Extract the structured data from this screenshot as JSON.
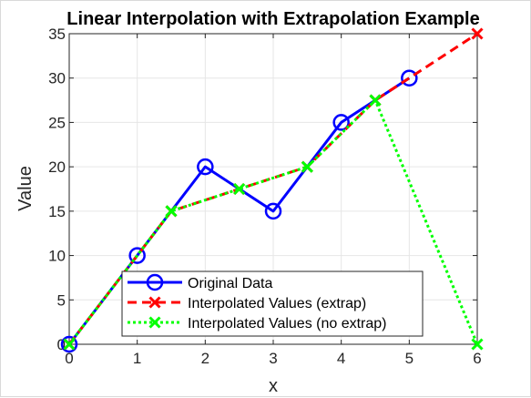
{
  "chart_data": {
    "type": "line",
    "title": "Linear Interpolation with Extrapolation Example",
    "xlabel": "x",
    "ylabel": "Value",
    "xlim": [
      0,
      6
    ],
    "ylim": [
      0,
      35
    ],
    "xticks": [
      0,
      1,
      2,
      3,
      4,
      5,
      6
    ],
    "yticks": [
      0,
      5,
      10,
      15,
      20,
      25,
      30,
      35
    ],
    "grid": true,
    "legend_position": "bottom-left",
    "series": [
      {
        "name": "Original Data",
        "color": "#0000ff",
        "line_style": "solid",
        "marker": "circle",
        "x": [
          0,
          1,
          2,
          3,
          4,
          5
        ],
        "y": [
          0,
          10,
          20,
          15,
          25,
          30
        ]
      },
      {
        "name": "Interpolated Values (extrap)",
        "color": "#ff0000",
        "line_style": "dashed",
        "marker": "x",
        "x": [
          0,
          1.5,
          2.5,
          3.5,
          4.5,
          6
        ],
        "y": [
          0,
          15,
          17.5,
          20,
          27.5,
          35
        ]
      },
      {
        "name": "Interpolated Values (no extrap)",
        "color": "#00ff00",
        "line_style": "dotted",
        "marker": "x",
        "x": [
          0,
          1.5,
          2.5,
          3.5,
          4.5,
          6
        ],
        "y": [
          0,
          15,
          17.5,
          20,
          27.5,
          0
        ]
      }
    ]
  }
}
